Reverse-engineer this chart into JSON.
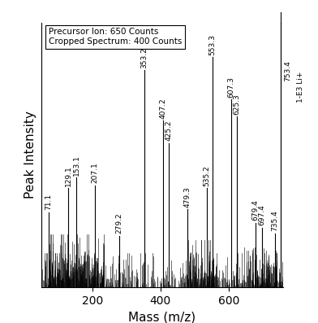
{
  "xlabel": "Mass (m/z)",
  "ylabel": "Peak Intensity",
  "xlim": [
    50,
    760
  ],
  "ylim": [
    0,
    1.05
  ],
  "annotation_box": "Precursor Ion: 650 Counts\nCropped Spectrum: 400 Counts",
  "right_label_mz": "753.4",
  "right_label_name": "1-E3 Li+",
  "labeled_peaks": [
    {
      "mz": 71.1,
      "intensity": 0.285,
      "label": "71.1"
    },
    {
      "mz": 129.1,
      "intensity": 0.375,
      "label": "129.1"
    },
    {
      "mz": 153.1,
      "intensity": 0.415,
      "label": "153.1"
    },
    {
      "mz": 207.1,
      "intensity": 0.385,
      "label": "207.1"
    },
    {
      "mz": 279.2,
      "intensity": 0.195,
      "label": "279.2"
    },
    {
      "mz": 353.2,
      "intensity": 0.82,
      "label": "353.2"
    },
    {
      "mz": 407.2,
      "intensity": 0.63,
      "label": "407.2"
    },
    {
      "mz": 425.2,
      "intensity": 0.545,
      "label": "425.2"
    },
    {
      "mz": 479.3,
      "intensity": 0.295,
      "label": "479.3"
    },
    {
      "mz": 535.2,
      "intensity": 0.375,
      "label": "535.2"
    },
    {
      "mz": 553.3,
      "intensity": 0.87,
      "label": "553.3"
    },
    {
      "mz": 607.3,
      "intensity": 0.71,
      "label": "607.3"
    },
    {
      "mz": 625.3,
      "intensity": 0.645,
      "label": "625.3"
    },
    {
      "mz": 679.4,
      "intensity": 0.245,
      "label": "679.4"
    },
    {
      "mz": 697.4,
      "intensity": 0.225,
      "label": "697.4"
    },
    {
      "mz": 735.4,
      "intensity": 0.205,
      "label": "735.4"
    },
    {
      "mz": 753.4,
      "intensity": 1.02,
      "label": "753.4"
    }
  ],
  "xticks": [
    200,
    400,
    600
  ],
  "bar_color": "#000000",
  "label_fontsize": 6.5,
  "axis_fontsize": 11
}
